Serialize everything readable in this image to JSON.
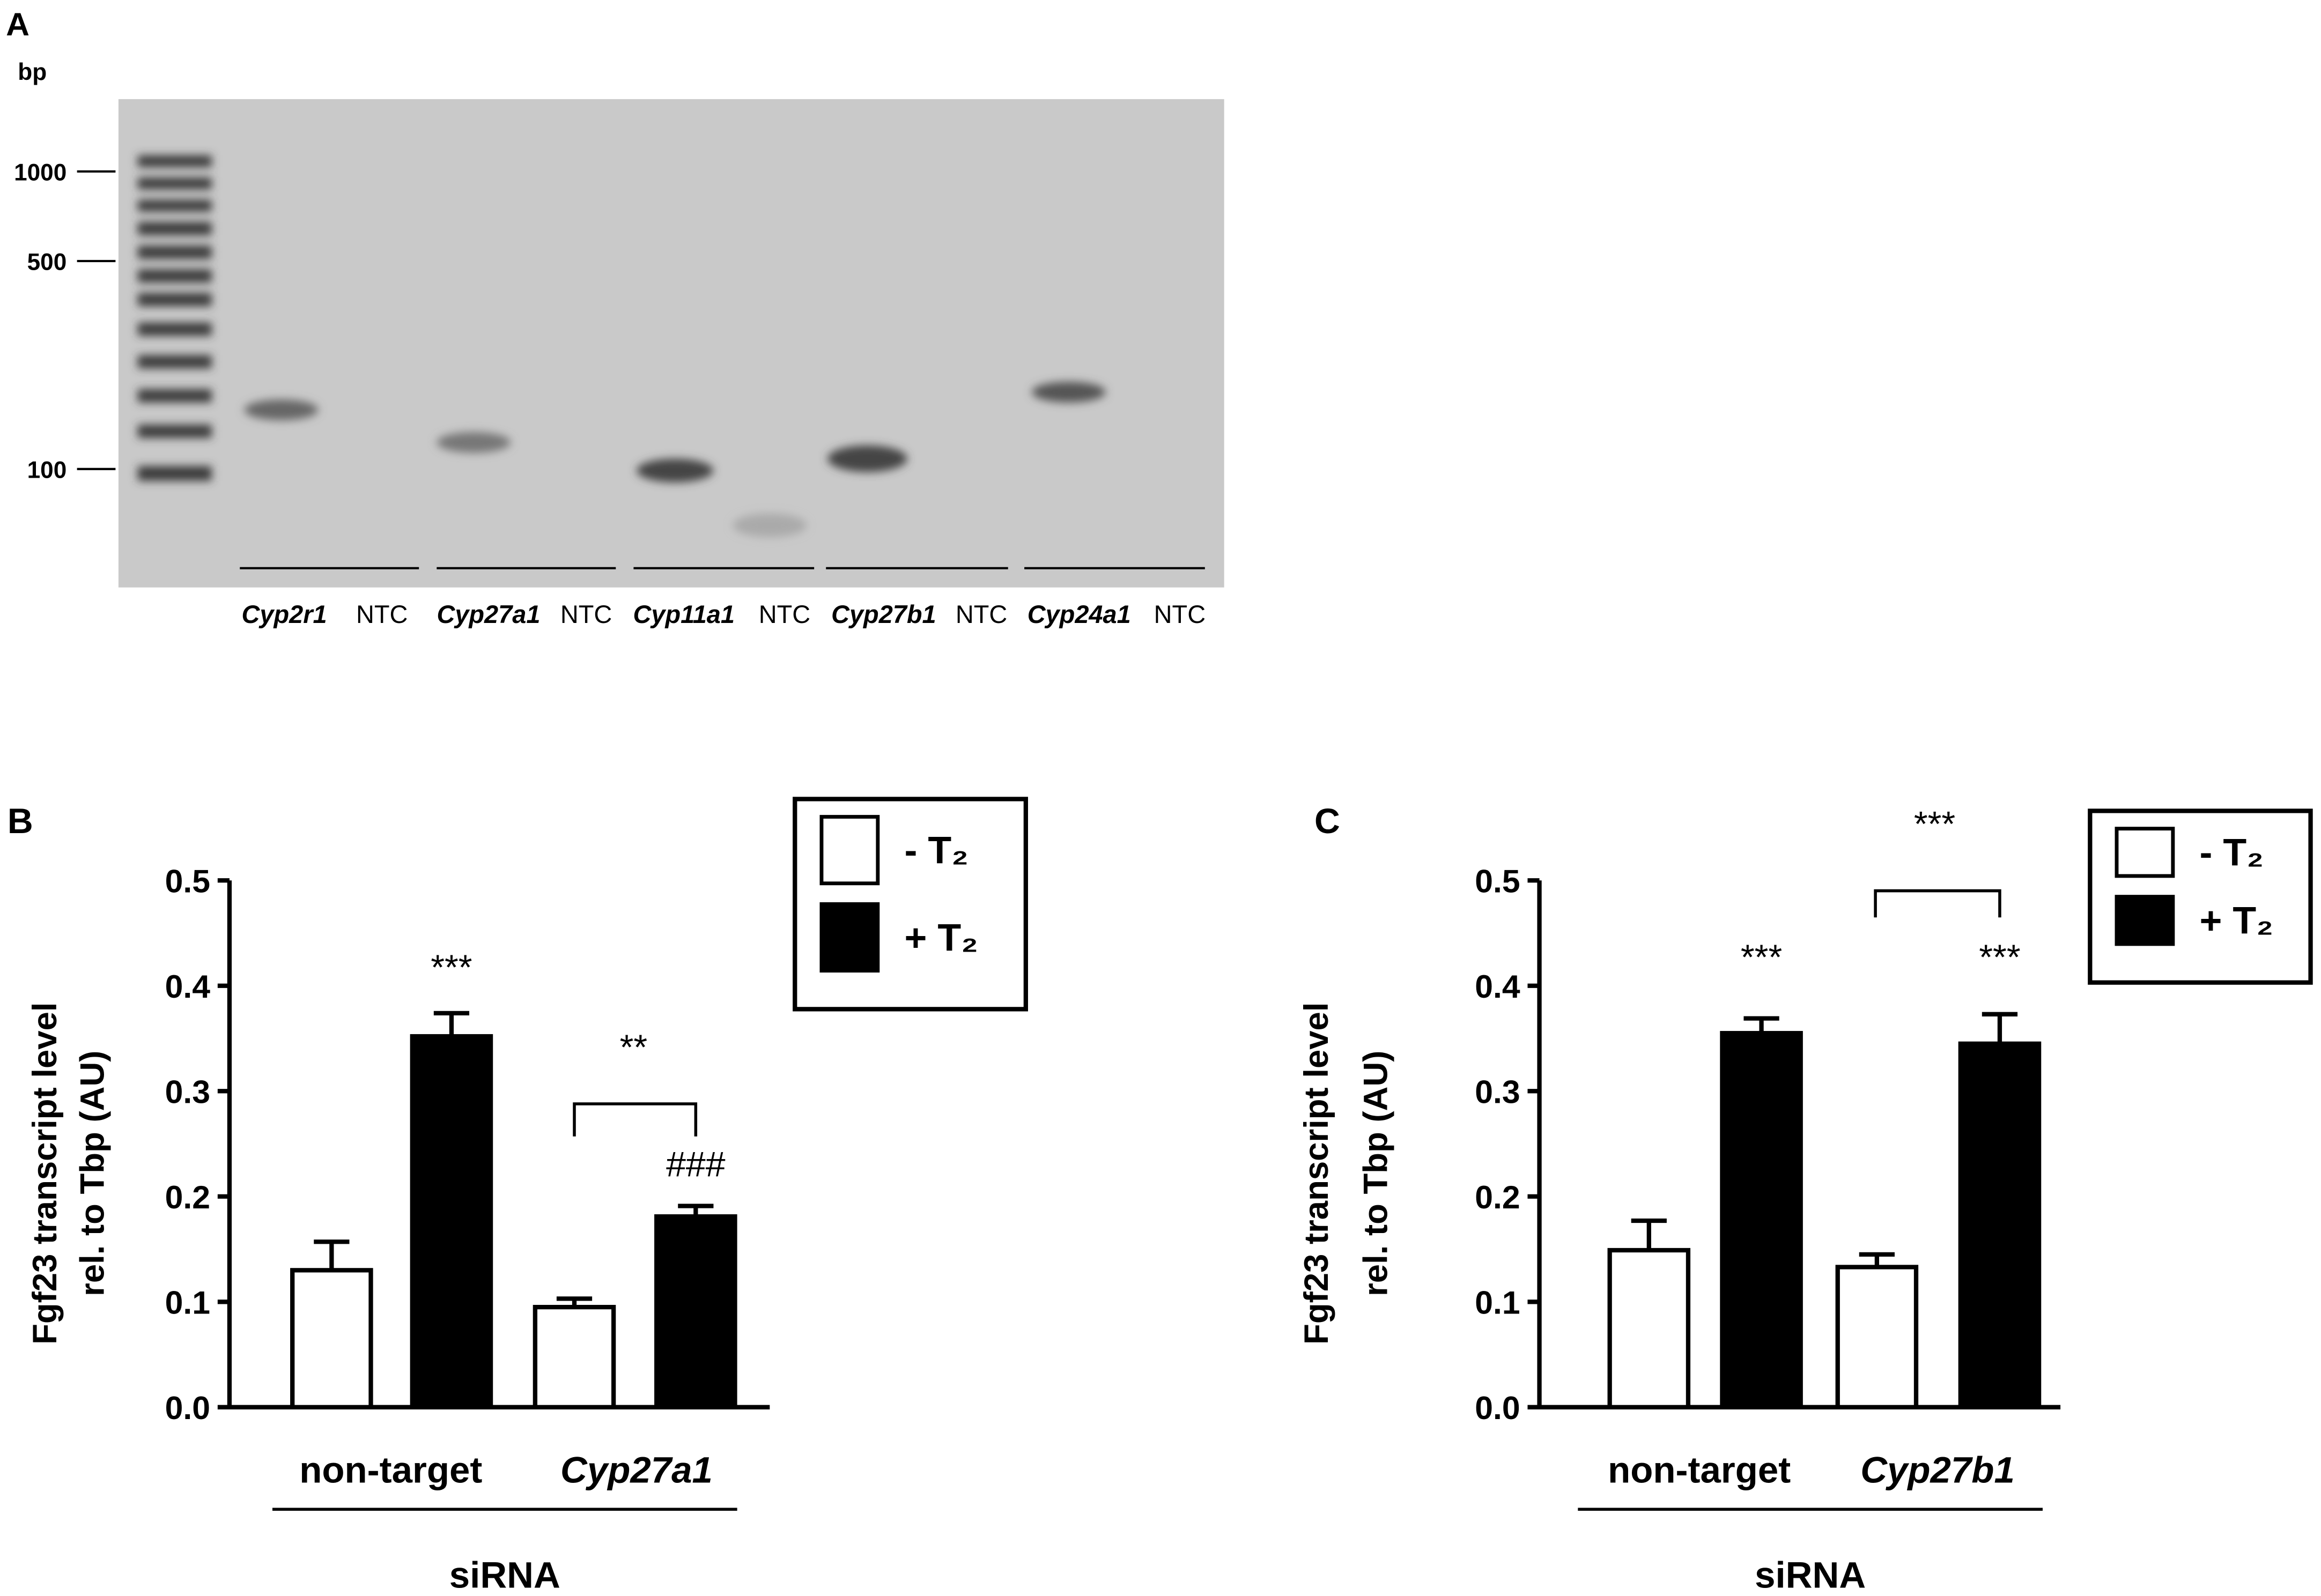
{
  "chart_data": [
    {
      "type": "gel",
      "panel_label": "A",
      "y_label": "bp",
      "log_scale": true,
      "ylim": [
        40,
        1750
      ],
      "yticks": [
        1000,
        500,
        100
      ],
      "categories": [
        "Cyp2r1",
        "NTC",
        "Cyp27a1",
        "NTC",
        "Cyp11a1",
        "NTC",
        "Cyp27b1",
        "NTC",
        "Cyp24a1",
        "NTC"
      ]
    },
    {
      "type": "bar",
      "panel_label": "B",
      "y_label": [
        "Fgf23 transcript level",
        "rel. to Tbp (AU)"
      ],
      "x_label": "siRNA",
      "categories": [
        "non-target",
        "Cyp27a1"
      ],
      "series": [
        {
          "name": "- T₂",
          "color": "#ffffff",
          "values": [
            0.13,
            0.095
          ],
          "errors": [
            0.027,
            0.008
          ]
        },
        {
          "name": "+ T₂",
          "color": "#000000",
          "values": [
            0.352,
            0.181
          ],
          "errors": [
            0.022,
            0.01
          ]
        }
      ],
      "annotations": [
        "***",
        "**",
        "###"
      ],
      "ylim": [
        0,
        0.5
      ],
      "yticks": [
        {
          "value": 0,
          "label": "0.0"
        },
        0.1,
        0.2,
        0.3,
        0.4,
        0.5
      ]
    },
    {
      "type": "bar",
      "panel_label": "C",
      "y_label": [
        "Fgf23 transcript level",
        "rel. to Tbp (AU)"
      ],
      "x_label": "siRNA",
      "categories": [
        "non-target",
        "Cyp27b1"
      ],
      "series": [
        {
          "name": "- T₂",
          "color": "#ffffff",
          "values": [
            0.149,
            0.133
          ],
          "errors": [
            0.028,
            0.012
          ]
        },
        {
          "name": "+ T₂",
          "color": "#000000",
          "values": [
            0.355,
            0.345
          ],
          "errors": [
            0.014,
            0.028
          ]
        }
      ],
      "annotations": [
        "***",
        "***",
        "***"
      ],
      "ylim": [
        0,
        0.5
      ],
      "yticks": [
        {
          "value": 0,
          "label": "0.0"
        },
        0.1,
        0.2,
        0.3,
        0.4,
        0.5
      ]
    }
  ]
}
